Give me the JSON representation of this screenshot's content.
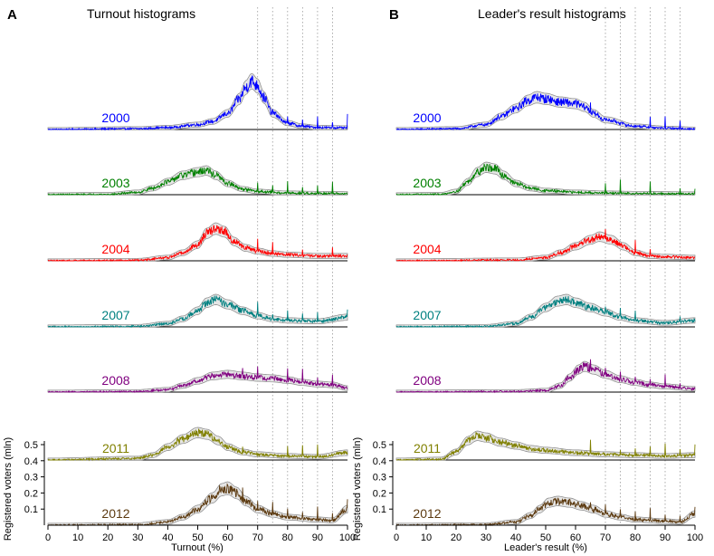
{
  "chart_data": [
    {
      "type": "line",
      "panel_letter": "A",
      "title": "Turnout histograms",
      "xlabel": "Turnout (%)",
      "ylabel": "Registered voters (mln)",
      "xlim": [
        0,
        100
      ],
      "ylim": [
        0,
        0.55
      ],
      "x_ticks": [
        "0",
        "10",
        "20",
        "30",
        "40",
        "50",
        "60",
        "70",
        "80",
        "90",
        "100"
      ],
      "y_ticks": [
        "0.1",
        "0.2",
        "0.3",
        "0.4",
        "0.5"
      ],
      "y_tick_values": [
        0.1,
        0.2,
        0.3,
        0.4,
        0.5
      ],
      "reference_lines_x": [
        70,
        75,
        80,
        85,
        90,
        95
      ],
      "series": [
        {
          "name": "2000",
          "color": "#0000ff",
          "peak": [
            [
              0,
              0
            ],
            [
              30,
              0.005
            ],
            [
              40,
              0.012
            ],
            [
              50,
              0.03
            ],
            [
              55,
              0.05
            ],
            [
              60,
              0.1
            ],
            [
              64,
              0.19
            ],
            [
              66,
              0.26
            ],
            [
              68,
              0.3
            ],
            [
              70,
              0.27
            ],
            [
              72,
              0.2
            ],
            [
              75,
              0.1
            ],
            [
              80,
              0.04
            ],
            [
              85,
              0.02
            ],
            [
              90,
              0.013
            ],
            [
              95,
              0.011
            ],
            [
              100,
              0.01
            ]
          ]
        },
        {
          "name": "2003",
          "color": "#008000",
          "peak": [
            [
              0,
              0
            ],
            [
              20,
              0.002
            ],
            [
              30,
              0.015
            ],
            [
              35,
              0.04
            ],
            [
              40,
              0.08
            ],
            [
              45,
              0.12
            ],
            [
              50,
              0.14
            ],
            [
              53,
              0.15
            ],
            [
              56,
              0.12
            ],
            [
              60,
              0.07
            ],
            [
              65,
              0.035
            ],
            [
              70,
              0.02
            ],
            [
              80,
              0.01
            ],
            [
              90,
              0.008
            ],
            [
              100,
              0.006
            ]
          ]
        },
        {
          "name": "2004",
          "color": "#ff0000",
          "peak": [
            [
              0,
              0
            ],
            [
              30,
              0.003
            ],
            [
              40,
              0.02
            ],
            [
              45,
              0.05
            ],
            [
              50,
              0.1
            ],
            [
              53,
              0.17
            ],
            [
              56,
              0.2
            ],
            [
              59,
              0.18
            ],
            [
              62,
              0.12
            ],
            [
              66,
              0.08
            ],
            [
              70,
              0.06
            ],
            [
              75,
              0.045
            ],
            [
              80,
              0.038
            ],
            [
              90,
              0.03
            ],
            [
              100,
              0.03
            ]
          ]
        },
        {
          "name": "2007",
          "color": "#008080",
          "peak": [
            [
              0,
              0
            ],
            [
              30,
              0.003
            ],
            [
              40,
              0.02
            ],
            [
              45,
              0.05
            ],
            [
              50,
              0.1
            ],
            [
              53,
              0.15
            ],
            [
              56,
              0.17
            ],
            [
              60,
              0.14
            ],
            [
              65,
              0.1
            ],
            [
              70,
              0.07
            ],
            [
              75,
              0.05
            ],
            [
              80,
              0.04
            ],
            [
              90,
              0.035
            ],
            [
              100,
              0.06
            ]
          ]
        },
        {
          "name": "2008",
          "color": "#800080",
          "peak": [
            [
              0,
              0
            ],
            [
              30,
              0.003
            ],
            [
              40,
              0.015
            ],
            [
              45,
              0.04
            ],
            [
              50,
              0.07
            ],
            [
              55,
              0.1
            ],
            [
              60,
              0.11
            ],
            [
              65,
              0.1
            ],
            [
              70,
              0.09
            ],
            [
              75,
              0.085
            ],
            [
              80,
              0.075
            ],
            [
              85,
              0.06
            ],
            [
              90,
              0.05
            ],
            [
              95,
              0.045
            ],
            [
              100,
              0.025
            ]
          ]
        },
        {
          "name": "2011",
          "color": "#808000",
          "peak": [
            [
              0,
              0
            ],
            [
              30,
              0.01
            ],
            [
              35,
              0.03
            ],
            [
              40,
              0.08
            ],
            [
              45,
              0.13
            ],
            [
              50,
              0.17
            ],
            [
              53,
              0.16
            ],
            [
              57,
              0.12
            ],
            [
              60,
              0.08
            ],
            [
              65,
              0.05
            ],
            [
              70,
              0.035
            ],
            [
              80,
              0.025
            ],
            [
              90,
              0.02
            ],
            [
              100,
              0.045
            ]
          ]
        },
        {
          "name": "2012",
          "color": "#5c3a10",
          "peak": [
            [
              0,
              0
            ],
            [
              30,
              0.003
            ],
            [
              40,
              0.02
            ],
            [
              45,
              0.05
            ],
            [
              50,
              0.1
            ],
            [
              55,
              0.17
            ],
            [
              58,
              0.22
            ],
            [
              60,
              0.23
            ],
            [
              63,
              0.2
            ],
            [
              66,
              0.15
            ],
            [
              70,
              0.1
            ],
            [
              75,
              0.07
            ],
            [
              80,
              0.05
            ],
            [
              90,
              0.035
            ],
            [
              95,
              0.03
            ],
            [
              100,
              0.1
            ]
          ]
        }
      ]
    },
    {
      "type": "line",
      "panel_letter": "B",
      "title": "Leader's result histograms",
      "xlabel": "Leader's result (%)",
      "ylabel": "Registered voters (mln)",
      "xlim": [
        0,
        100
      ],
      "ylim": [
        0,
        0.55
      ],
      "x_ticks": [
        "0",
        "10",
        "20",
        "30",
        "40",
        "50",
        "60",
        "70",
        "80",
        "90",
        "100"
      ],
      "y_ticks": [
        "0.1",
        "0.2",
        "0.3",
        "0.4",
        "0.5"
      ],
      "y_tick_values": [
        0.1,
        0.2,
        0.3,
        0.4,
        0.5
      ],
      "reference_lines_x": [
        70,
        75,
        80,
        85,
        90,
        95
      ],
      "series": [
        {
          "name": "2000",
          "color": "#0000ff",
          "peak": [
            [
              0,
              0
            ],
            [
              20,
              0.005
            ],
            [
              30,
              0.03
            ],
            [
              35,
              0.08
            ],
            [
              40,
              0.13
            ],
            [
              44,
              0.18
            ],
            [
              47,
              0.2
            ],
            [
              50,
              0.19
            ],
            [
              55,
              0.17
            ],
            [
              60,
              0.16
            ],
            [
              63,
              0.14
            ],
            [
              66,
              0.1
            ],
            [
              70,
              0.06
            ],
            [
              80,
              0.02
            ],
            [
              90,
              0.008
            ],
            [
              100,
              0.003
            ]
          ]
        },
        {
          "name": "2003",
          "color": "#008000",
          "peak": [
            [
              0,
              0
            ],
            [
              15,
              0.002
            ],
            [
              20,
              0.02
            ],
            [
              24,
              0.08
            ],
            [
              27,
              0.14
            ],
            [
              30,
              0.17
            ],
            [
              33,
              0.16
            ],
            [
              36,
              0.12
            ],
            [
              40,
              0.07
            ],
            [
              45,
              0.04
            ],
            [
              50,
              0.025
            ],
            [
              60,
              0.015
            ],
            [
              70,
              0.01
            ],
            [
              80,
              0.008
            ],
            [
              100,
              0.005
            ]
          ]
        },
        {
          "name": "2004",
          "color": "#ff0000",
          "peak": [
            [
              0,
              0
            ],
            [
              40,
              0.005
            ],
            [
              50,
              0.02
            ],
            [
              55,
              0.05
            ],
            [
              60,
              0.09
            ],
            [
              65,
              0.13
            ],
            [
              68,
              0.15
            ],
            [
              72,
              0.13
            ],
            [
              76,
              0.09
            ],
            [
              80,
              0.05
            ],
            [
              85,
              0.03
            ],
            [
              90,
              0.025
            ],
            [
              100,
              0.02
            ]
          ]
        },
        {
          "name": "2007",
          "color": "#008080",
          "peak": [
            [
              0,
              0
            ],
            [
              30,
              0.003
            ],
            [
              40,
              0.02
            ],
            [
              45,
              0.06
            ],
            [
              50,
              0.12
            ],
            [
              54,
              0.16
            ],
            [
              57,
              0.17
            ],
            [
              60,
              0.15
            ],
            [
              65,
              0.12
            ],
            [
              70,
              0.09
            ],
            [
              75,
              0.06
            ],
            [
              80,
              0.04
            ],
            [
              90,
              0.025
            ],
            [
              100,
              0.04
            ]
          ]
        },
        {
          "name": "2008",
          "color": "#800080",
          "peak": [
            [
              0,
              0
            ],
            [
              40,
              0.003
            ],
            [
              50,
              0.01
            ],
            [
              55,
              0.04
            ],
            [
              58,
              0.09
            ],
            [
              61,
              0.14
            ],
            [
              63,
              0.16
            ],
            [
              66,
              0.14
            ],
            [
              70,
              0.11
            ],
            [
              75,
              0.08
            ],
            [
              80,
              0.06
            ],
            [
              85,
              0.045
            ],
            [
              90,
              0.035
            ],
            [
              100,
              0.02
            ]
          ]
        },
        {
          "name": "2011",
          "color": "#808000",
          "peak": [
            [
              0,
              0
            ],
            [
              15,
              0.005
            ],
            [
              20,
              0.05
            ],
            [
              24,
              0.12
            ],
            [
              27,
              0.15
            ],
            [
              30,
              0.14
            ],
            [
              35,
              0.11
            ],
            [
              40,
              0.09
            ],
            [
              45,
              0.07
            ],
            [
              50,
              0.06
            ],
            [
              60,
              0.045
            ],
            [
              70,
              0.035
            ],
            [
              80,
              0.03
            ],
            [
              90,
              0.025
            ],
            [
              100,
              0.03
            ]
          ]
        },
        {
          "name": "2012",
          "color": "#5c3a10",
          "peak": [
            [
              0,
              0
            ],
            [
              30,
              0.003
            ],
            [
              40,
              0.02
            ],
            [
              45,
              0.06
            ],
            [
              48,
              0.1
            ],
            [
              51,
              0.14
            ],
            [
              54,
              0.15
            ],
            [
              58,
              0.14
            ],
            [
              62,
              0.12
            ],
            [
              66,
              0.1
            ],
            [
              70,
              0.07
            ],
            [
              75,
              0.05
            ],
            [
              80,
              0.035
            ],
            [
              90,
              0.025
            ],
            [
              95,
              0.02
            ],
            [
              100,
              0.07
            ]
          ]
        }
      ]
    }
  ]
}
